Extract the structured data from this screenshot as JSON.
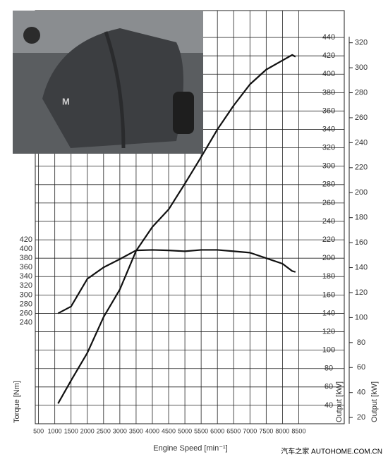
{
  "chart_data": {
    "type": "line",
    "x_label": "Engine Speed [min⁻¹]",
    "y_label": "Torque [Nm]",
    "y2_label": "Output [kW]",
    "y3_label": "Output [kW]",
    "watermark": "汽车之家  AUTOHOME.COM.CN",
    "x": [
      1100,
      1500,
      2000,
      2500,
      3000,
      3500,
      4000,
      4500,
      5000,
      5500,
      6000,
      6500,
      7000,
      7500,
      8000,
      8300,
      8400
    ],
    "series": [
      {
        "color": "#111111",
        "axis": "y",
        "values": [
          260,
          275,
          335,
          360,
          378,
          397,
          398,
          397,
          395,
          398,
          398,
          395,
          392,
          380,
          368,
          352,
          350
        ]
      },
      {
        "color": "#111111",
        "axis": "y2",
        "values": [
          42,
          67,
          97,
          136,
          166,
          208,
          234,
          253,
          281,
          310,
          340,
          366,
          389,
          405,
          415,
          421,
          419
        ]
      }
    ],
    "xlim": [
      400,
      9900
    ],
    "xticks": [
      500,
      1000,
      1500,
      2000,
      2500,
      3000,
      3500,
      4000,
      4500,
      5000,
      5500,
      6000,
      6500,
      7000,
      7500,
      8000,
      8500
    ],
    "ylim": [
      20,
      900
    ],
    "yticks": [
      240,
      260,
      280,
      300,
      320,
      340,
      360,
      380,
      400,
      420
    ],
    "y2lim": [
      20,
      460
    ],
    "y2ticks": [
      40,
      60,
      80,
      100,
      120,
      140,
      160,
      180,
      200,
      220,
      240,
      260,
      280,
      300,
      320,
      340,
      360,
      380,
      400,
      420,
      440
    ],
    "y3lim": [
      15,
      339
    ],
    "y3ticks": [
      20,
      40,
      60,
      80,
      100,
      120,
      140,
      160,
      180,
      200,
      220,
      240,
      260,
      280,
      300,
      320
    ],
    "grid": true
  }
}
